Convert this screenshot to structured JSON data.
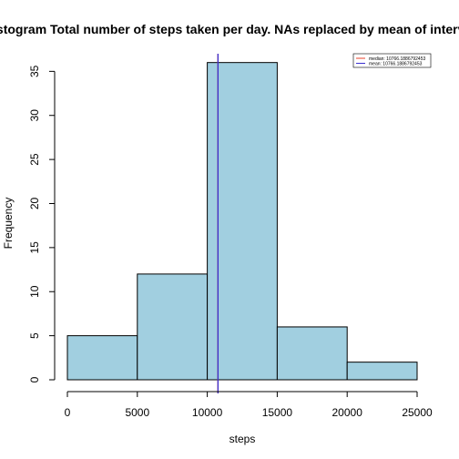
{
  "chart_data": {
    "type": "bar",
    "title": "Histogram Total number of steps taken per day. NAs replaced by mean of interval",
    "xlabel": "steps",
    "ylabel": "Frequency",
    "bins": [
      {
        "start": 0,
        "end": 5000,
        "count": 5
      },
      {
        "start": 5000,
        "end": 10000,
        "count": 12
      },
      {
        "start": 10000,
        "end": 15000,
        "count": 36
      },
      {
        "start": 15000,
        "end": 20000,
        "count": 6
      },
      {
        "start": 20000,
        "end": 25000,
        "count": 2
      }
    ],
    "xlim": [
      0,
      25000
    ],
    "ylim": [
      0,
      37
    ],
    "xticks": [
      0,
      5000,
      10000,
      15000,
      20000,
      25000
    ],
    "yticks": [
      0,
      5,
      10,
      15,
      20,
      25,
      30,
      35
    ],
    "bar_color": "#a1cfe0",
    "grid": false,
    "legend_position": "top-right",
    "lines": [
      {
        "name": "median: 10766.1886792453",
        "x": 10766.1886792453,
        "color": "#e8402a"
      },
      {
        "name": "mean: 10766.1886792453",
        "x": 10766.1886792453,
        "color": "#3a2fd0"
      }
    ]
  }
}
